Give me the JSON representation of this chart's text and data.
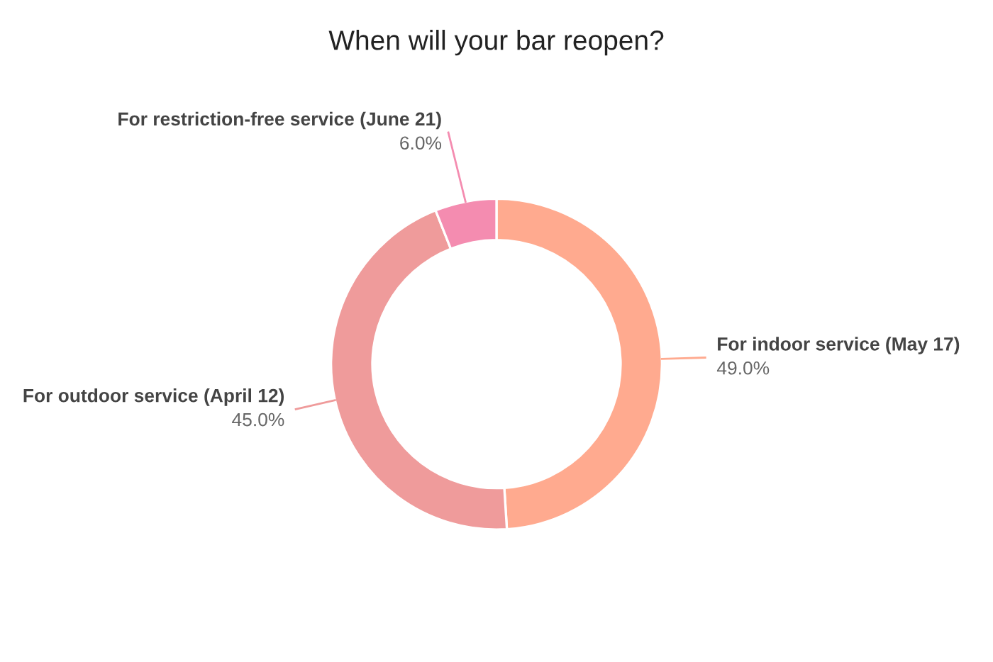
{
  "chart_data": {
    "type": "donut",
    "title": "When will your bar reopen?",
    "categories": [
      "For indoor service (May 17)",
      "For outdoor service (April 12)",
      "For restriction-free service (June 21)"
    ],
    "values": [
      49.0,
      45.0,
      6.0
    ],
    "colors": [
      "#ffaa8f",
      "#ef9b9b",
      "#f48cb0"
    ],
    "value_labels": [
      "49.0%",
      "45.0%",
      "6.0%"
    ],
    "legend": false
  }
}
